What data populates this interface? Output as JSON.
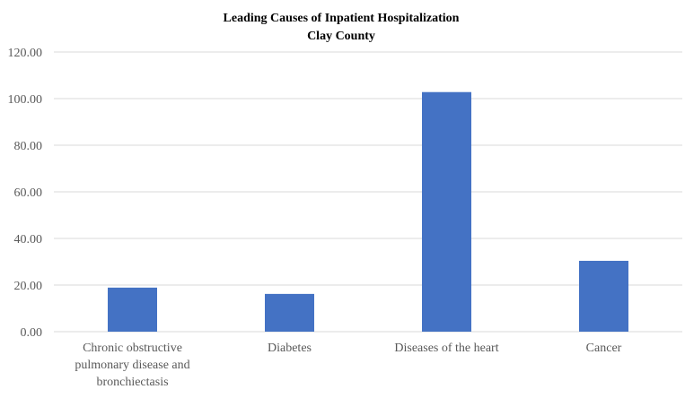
{
  "chart_data": {
    "type": "bar",
    "title": "Leading Causes of Inpatient  Hospitalization",
    "subtitle": "Clay County",
    "categories": [
      [
        "Chronic obstructive",
        "pulmonary disease and",
        "bronchiectasis"
      ],
      [
        "Diabetes"
      ],
      [
        "Diseases of the heart"
      ],
      [
        "Cancer"
      ]
    ],
    "values": [
      18.9,
      16.2,
      102.8,
      30.4
    ],
    "xlabel": "",
    "ylabel": "",
    "ylim": [
      0,
      120
    ],
    "yticks": [
      "0.00",
      "20.00",
      "40.00",
      "60.00",
      "80.00",
      "100.00",
      "120.00"
    ],
    "grid": true,
    "bar_color": "#4472C4",
    "grid_color": "#D9D9D9"
  }
}
